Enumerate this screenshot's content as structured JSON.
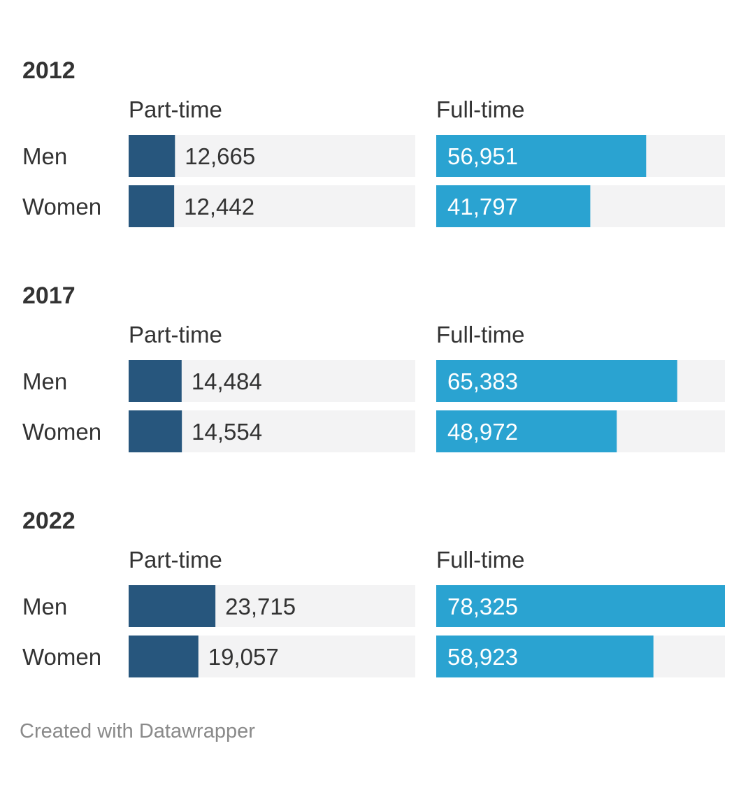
{
  "chart_data": {
    "type": "bar",
    "orientation": "horizontal",
    "layout": "small-multiples",
    "groups": [
      {
        "title": "2012",
        "categories": [
          "Men",
          "Women"
        ],
        "series": [
          {
            "name": "Part-time",
            "values": [
              12665,
              12442
            ],
            "labels": [
              "12,665",
              "12,442"
            ]
          },
          {
            "name": "Full-time",
            "values": [
              56951,
              41797
            ],
            "labels": [
              "56,951",
              "41,797"
            ]
          }
        ]
      },
      {
        "title": "2017",
        "categories": [
          "Men",
          "Women"
        ],
        "series": [
          {
            "name": "Part-time",
            "values": [
              14484,
              14554
            ],
            "labels": [
              "14,484",
              "14,554"
            ]
          },
          {
            "name": "Full-time",
            "values": [
              65383,
              48972
            ],
            "labels": [
              "65,383",
              "48,972"
            ]
          }
        ]
      },
      {
        "title": "2022",
        "categories": [
          "Men",
          "Women"
        ],
        "series": [
          {
            "name": "Part-time",
            "values": [
              23715,
              19057
            ],
            "labels": [
              "23,715",
              "19,057"
            ]
          },
          {
            "name": "Full-time",
            "values": [
              78325,
              58923
            ],
            "labels": [
              "78,325",
              "58,923"
            ]
          }
        ]
      }
    ],
    "xlim": {
      "Part-time": [
        0,
        78325
      ],
      "Full-time": [
        0,
        78325
      ]
    },
    "grid": false,
    "colors": {
      "Part-time": "#27567d",
      "Full-time": "#2aa3d1",
      "track": "#f3f3f4",
      "text": "#333333",
      "label_inside": "#ffffff"
    }
  },
  "footer": "Created with Datawrapper"
}
